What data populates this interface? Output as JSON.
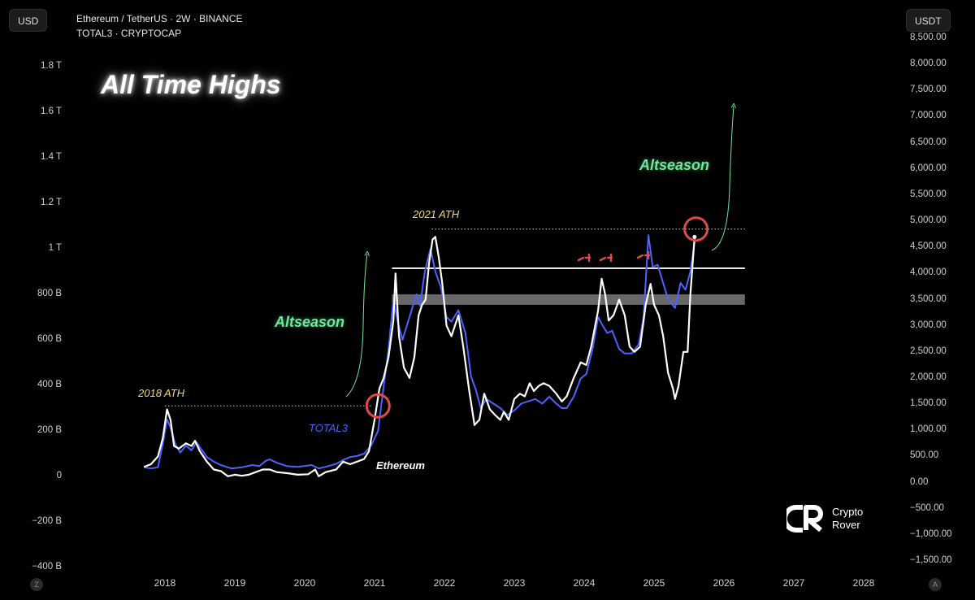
{
  "header": {
    "left_badge": "USD",
    "right_badge": "USDT",
    "symbol_line": "Ethereum / TetherUS · 2W · BINANCE",
    "overlay_line": "TOTAL3 · CRYPTOCAP"
  },
  "annotations": {
    "title": "All Time Highs",
    "altseason_1": "Altseason",
    "altseason_2": "Altseason",
    "ath_2018": "2018 ATH",
    "ath_2021": "2021 ATH",
    "total3_label": "TOTAL3",
    "eth_label": "Ethereum"
  },
  "axis_buttons": {
    "left": "Z",
    "right": "A"
  },
  "logo": {
    "line1": "Crypto",
    "line2": "Rover"
  },
  "colors": {
    "total3": "#4c63ff",
    "ethereum": "#ffffff",
    "altseason": "#6ee89a",
    "ath": "#f1de6a",
    "circle": "#e04a4a",
    "zone": "#7a7a7a"
  },
  "chart_data": {
    "type": "line",
    "x_ticks": [
      "2018",
      "2019",
      "2020",
      "2021",
      "2022",
      "2023",
      "2024",
      "2025",
      "2026",
      "2027",
      "2028"
    ],
    "left_axis": {
      "unit": "USD",
      "ticks": [
        "1.8 T",
        "1.6 T",
        "1.4 T",
        "1.2 T",
        "1 T",
        "800 B",
        "600 B",
        "400 B",
        "200 B",
        "0",
        "−200 B",
        "−400 B"
      ],
      "ylim": [
        -400,
        1800
      ]
    },
    "right_axis": {
      "unit": "USDT",
      "ticks": [
        "8,500.00",
        "8,000.00",
        "7,500.00",
        "7,000.00",
        "6,500.00",
        "6,000.00",
        "5,500.00",
        "5,000.00",
        "4,500.00",
        "4,000.00",
        "3,500.00",
        "3,000.00",
        "2,500.00",
        "2,000.00",
        "1,500.00",
        "1,000.00",
        "500.00",
        "0.00",
        "−500.00",
        "−1,000.00",
        "−1,500.00"
      ],
      "ylim": [
        -1500,
        8500
      ]
    },
    "series": [
      {
        "name": "TOTAL3",
        "axis": "left",
        "points": [
          [
            2017.7,
            40
          ],
          [
            2017.8,
            35
          ],
          [
            2017.9,
            40
          ],
          [
            2017.98,
            160
          ],
          [
            2018.03,
            250
          ],
          [
            2018.08,
            215
          ],
          [
            2018.15,
            140
          ],
          [
            2018.22,
            105
          ],
          [
            2018.3,
            135
          ],
          [
            2018.38,
            115
          ],
          [
            2018.45,
            150
          ],
          [
            2018.52,
            120
          ],
          [
            2018.6,
            85
          ],
          [
            2018.7,
            65
          ],
          [
            2018.8,
            50
          ],
          [
            2018.95,
            35
          ],
          [
            2019.1,
            40
          ],
          [
            2019.25,
            50
          ],
          [
            2019.35,
            45
          ],
          [
            2019.45,
            70
          ],
          [
            2019.5,
            75
          ],
          [
            2019.6,
            60
          ],
          [
            2019.75,
            45
          ],
          [
            2019.9,
            42
          ],
          [
            2020.1,
            50
          ],
          [
            2020.2,
            35
          ],
          [
            2020.3,
            42
          ],
          [
            2020.45,
            55
          ],
          [
            2020.55,
            72
          ],
          [
            2020.65,
            85
          ],
          [
            2020.75,
            90
          ],
          [
            2020.85,
            100
          ],
          [
            2020.95,
            135
          ],
          [
            2021.05,
            200
          ],
          [
            2021.12,
            370
          ],
          [
            2021.2,
            560
          ],
          [
            2021.27,
            780
          ],
          [
            2021.33,
            680
          ],
          [
            2021.4,
            600
          ],
          [
            2021.5,
            700
          ],
          [
            2021.6,
            800
          ],
          [
            2021.65,
            750
          ],
          [
            2021.72,
            900
          ],
          [
            2021.8,
            1000
          ],
          [
            2021.87,
            900
          ],
          [
            2021.95,
            830
          ],
          [
            2022.03,
            700
          ],
          [
            2022.1,
            680
          ],
          [
            2022.2,
            730
          ],
          [
            2022.3,
            630
          ],
          [
            2022.38,
            440
          ],
          [
            2022.45,
            380
          ],
          [
            2022.52,
            300
          ],
          [
            2022.6,
            340
          ],
          [
            2022.7,
            320
          ],
          [
            2022.8,
            300
          ],
          [
            2022.9,
            270
          ],
          [
            2023.0,
            290
          ],
          [
            2023.1,
            320
          ],
          [
            2023.2,
            330
          ],
          [
            2023.3,
            340
          ],
          [
            2023.4,
            320
          ],
          [
            2023.5,
            350
          ],
          [
            2023.6,
            320
          ],
          [
            2023.68,
            300
          ],
          [
            2023.75,
            300
          ],
          [
            2023.85,
            350
          ],
          [
            2023.95,
            430
          ],
          [
            2024.03,
            450
          ],
          [
            2024.12,
            560
          ],
          [
            2024.2,
            700
          ],
          [
            2024.27,
            660
          ],
          [
            2024.33,
            630
          ],
          [
            2024.4,
            640
          ],
          [
            2024.5,
            560
          ],
          [
            2024.58,
            540
          ],
          [
            2024.68,
            540
          ],
          [
            2024.78,
            580
          ],
          [
            2024.85,
            700
          ],
          [
            2024.92,
            1060
          ],
          [
            2024.98,
            920
          ],
          [
            2025.05,
            930
          ],
          [
            2025.12,
            860
          ],
          [
            2025.2,
            780
          ],
          [
            2025.3,
            740
          ],
          [
            2025.38,
            850
          ],
          [
            2025.45,
            820
          ],
          [
            2025.52,
            900
          ],
          [
            2025.58,
            1030
          ]
        ]
      },
      {
        "name": "Ethereum",
        "axis": "right",
        "points": [
          [
            2017.7,
            300
          ],
          [
            2017.8,
            350
          ],
          [
            2017.9,
            500
          ],
          [
            2017.97,
            850
          ],
          [
            2018.03,
            1400
          ],
          [
            2018.08,
            1200
          ],
          [
            2018.13,
            700
          ],
          [
            2018.2,
            650
          ],
          [
            2018.3,
            750
          ],
          [
            2018.38,
            700
          ],
          [
            2018.43,
            800
          ],
          [
            2018.5,
            600
          ],
          [
            2018.6,
            400
          ],
          [
            2018.7,
            250
          ],
          [
            2018.8,
            220
          ],
          [
            2018.9,
            120
          ],
          [
            2019.0,
            150
          ],
          [
            2019.1,
            130
          ],
          [
            2019.2,
            150
          ],
          [
            2019.3,
            200
          ],
          [
            2019.4,
            250
          ],
          [
            2019.5,
            250
          ],
          [
            2019.6,
            200
          ],
          [
            2019.75,
            180
          ],
          [
            2019.9,
            150
          ],
          [
            2020.05,
            160
          ],
          [
            2020.15,
            250
          ],
          [
            2020.2,
            120
          ],
          [
            2020.3,
            200
          ],
          [
            2020.45,
            250
          ],
          [
            2020.55,
            400
          ],
          [
            2020.65,
            350
          ],
          [
            2020.75,
            400
          ],
          [
            2020.85,
            450
          ],
          [
            2020.92,
            600
          ],
          [
            2021.0,
            1200
          ],
          [
            2021.07,
            1800
          ],
          [
            2021.13,
            2000
          ],
          [
            2021.2,
            2400
          ],
          [
            2021.27,
            3100
          ],
          [
            2021.3,
            4000
          ],
          [
            2021.35,
            2800
          ],
          [
            2021.42,
            2200
          ],
          [
            2021.5,
            2000
          ],
          [
            2021.57,
            2400
          ],
          [
            2021.63,
            3200
          ],
          [
            2021.68,
            3400
          ],
          [
            2021.73,
            3500
          ],
          [
            2021.78,
            4200
          ],
          [
            2021.83,
            4650
          ],
          [
            2021.87,
            4700
          ],
          [
            2021.92,
            4300
          ],
          [
            2021.97,
            3800
          ],
          [
            2022.03,
            3000
          ],
          [
            2022.1,
            2800
          ],
          [
            2022.2,
            3200
          ],
          [
            2022.27,
            2600
          ],
          [
            2022.35,
            1800
          ],
          [
            2022.43,
            1100
          ],
          [
            2022.5,
            1200
          ],
          [
            2022.57,
            1700
          ],
          [
            2022.65,
            1400
          ],
          [
            2022.72,
            1300
          ],
          [
            2022.8,
            1200
          ],
          [
            2022.85,
            1350
          ],
          [
            2022.92,
            1200
          ],
          [
            2023.0,
            1600
          ],
          [
            2023.08,
            1700
          ],
          [
            2023.15,
            1650
          ],
          [
            2023.22,
            1900
          ],
          [
            2023.28,
            1750
          ],
          [
            2023.35,
            1850
          ],
          [
            2023.42,
            1900
          ],
          [
            2023.5,
            1850
          ],
          [
            2023.6,
            1700
          ],
          [
            2023.68,
            1550
          ],
          [
            2023.75,
            1650
          ],
          [
            2023.85,
            2000
          ],
          [
            2023.95,
            2300
          ],
          [
            2024.03,
            2250
          ],
          [
            2024.1,
            2600
          ],
          [
            2024.2,
            3300
          ],
          [
            2024.25,
            3900
          ],
          [
            2024.3,
            3600
          ],
          [
            2024.35,
            3100
          ],
          [
            2024.42,
            3200
          ],
          [
            2024.5,
            3500
          ],
          [
            2024.58,
            3200
          ],
          [
            2024.65,
            2600
          ],
          [
            2024.72,
            2500
          ],
          [
            2024.8,
            2600
          ],
          [
            2024.88,
            3400
          ],
          [
            2024.95,
            3800
          ],
          [
            2025.0,
            3400
          ],
          [
            2025.07,
            3200
          ],
          [
            2025.13,
            2800
          ],
          [
            2025.2,
            2100
          ],
          [
            2025.27,
            1800
          ],
          [
            2025.3,
            1600
          ],
          [
            2025.35,
            1850
          ],
          [
            2025.42,
            2500
          ],
          [
            2025.48,
            2500
          ],
          [
            2025.52,
            3600
          ],
          [
            2025.58,
            4700
          ]
        ]
      }
    ],
    "reference_lines": {
      "ath_2018_total3": 310,
      "ath_2021_eth": 4850,
      "resistance_eth": 4100,
      "zone_eth": [
        3400,
        3600
      ]
    }
  }
}
